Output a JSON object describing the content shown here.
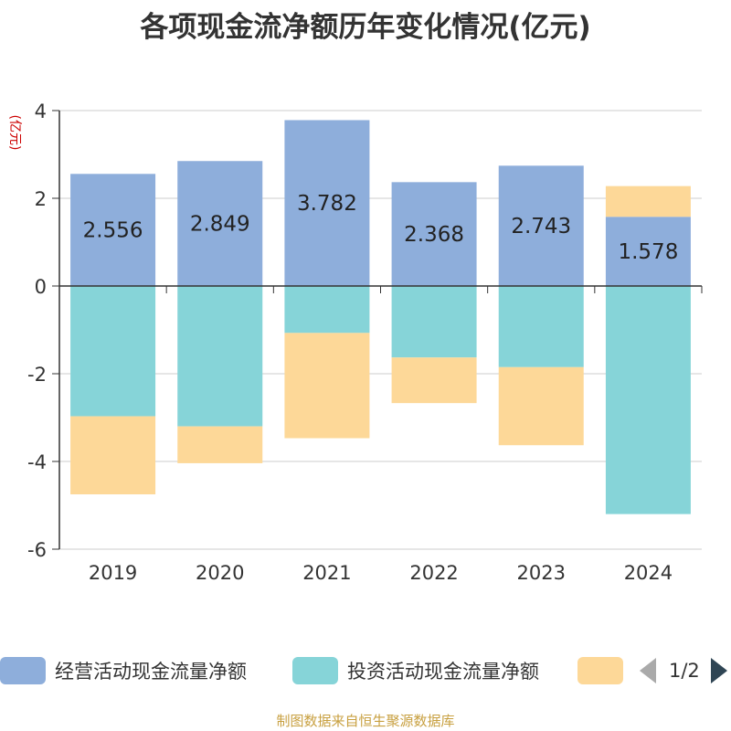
{
  "title": "各项现金流净额历年变化情况(亿元)",
  "source": "制图数据来自恒生聚源数据库",
  "legend": {
    "items": [
      {
        "label": "经营活动现金流量净额",
        "color": "#8eaedb"
      },
      {
        "label": "投资活动现金流量净额",
        "color": "#86d4d8"
      },
      {
        "label": "",
        "color": "#fdd898"
      }
    ],
    "page": "1/2"
  },
  "chart_data": {
    "type": "bar",
    "stacked": true,
    "title": "各项现金流净额历年变化情况(亿元)",
    "ylabel": "(亿元)",
    "xlabel": "",
    "ylim": [
      -6,
      4
    ],
    "yticks": [
      4,
      2,
      0,
      -2,
      -4,
      -6
    ],
    "categories": [
      "2019",
      "2020",
      "2021",
      "2022",
      "2023",
      "2024"
    ],
    "series": [
      {
        "name": "经营活动现金流量净额",
        "color": "#8eaedb",
        "values": [
          2.556,
          2.849,
          3.782,
          2.368,
          2.743,
          1.578
        ],
        "labels": [
          "2.556",
          "2.849",
          "3.782",
          "2.368",
          "2.743",
          "1.578"
        ]
      },
      {
        "name": "投资活动现金流量净额",
        "color": "#86d4d8",
        "values": [
          -2.97,
          -3.2,
          -1.07,
          -1.63,
          -1.85,
          -5.2
        ]
      },
      {
        "name": "",
        "color": "#fdd898",
        "values": [
          -1.78,
          -0.84,
          -2.4,
          -1.04,
          -1.78,
          0.7
        ]
      }
    ]
  }
}
